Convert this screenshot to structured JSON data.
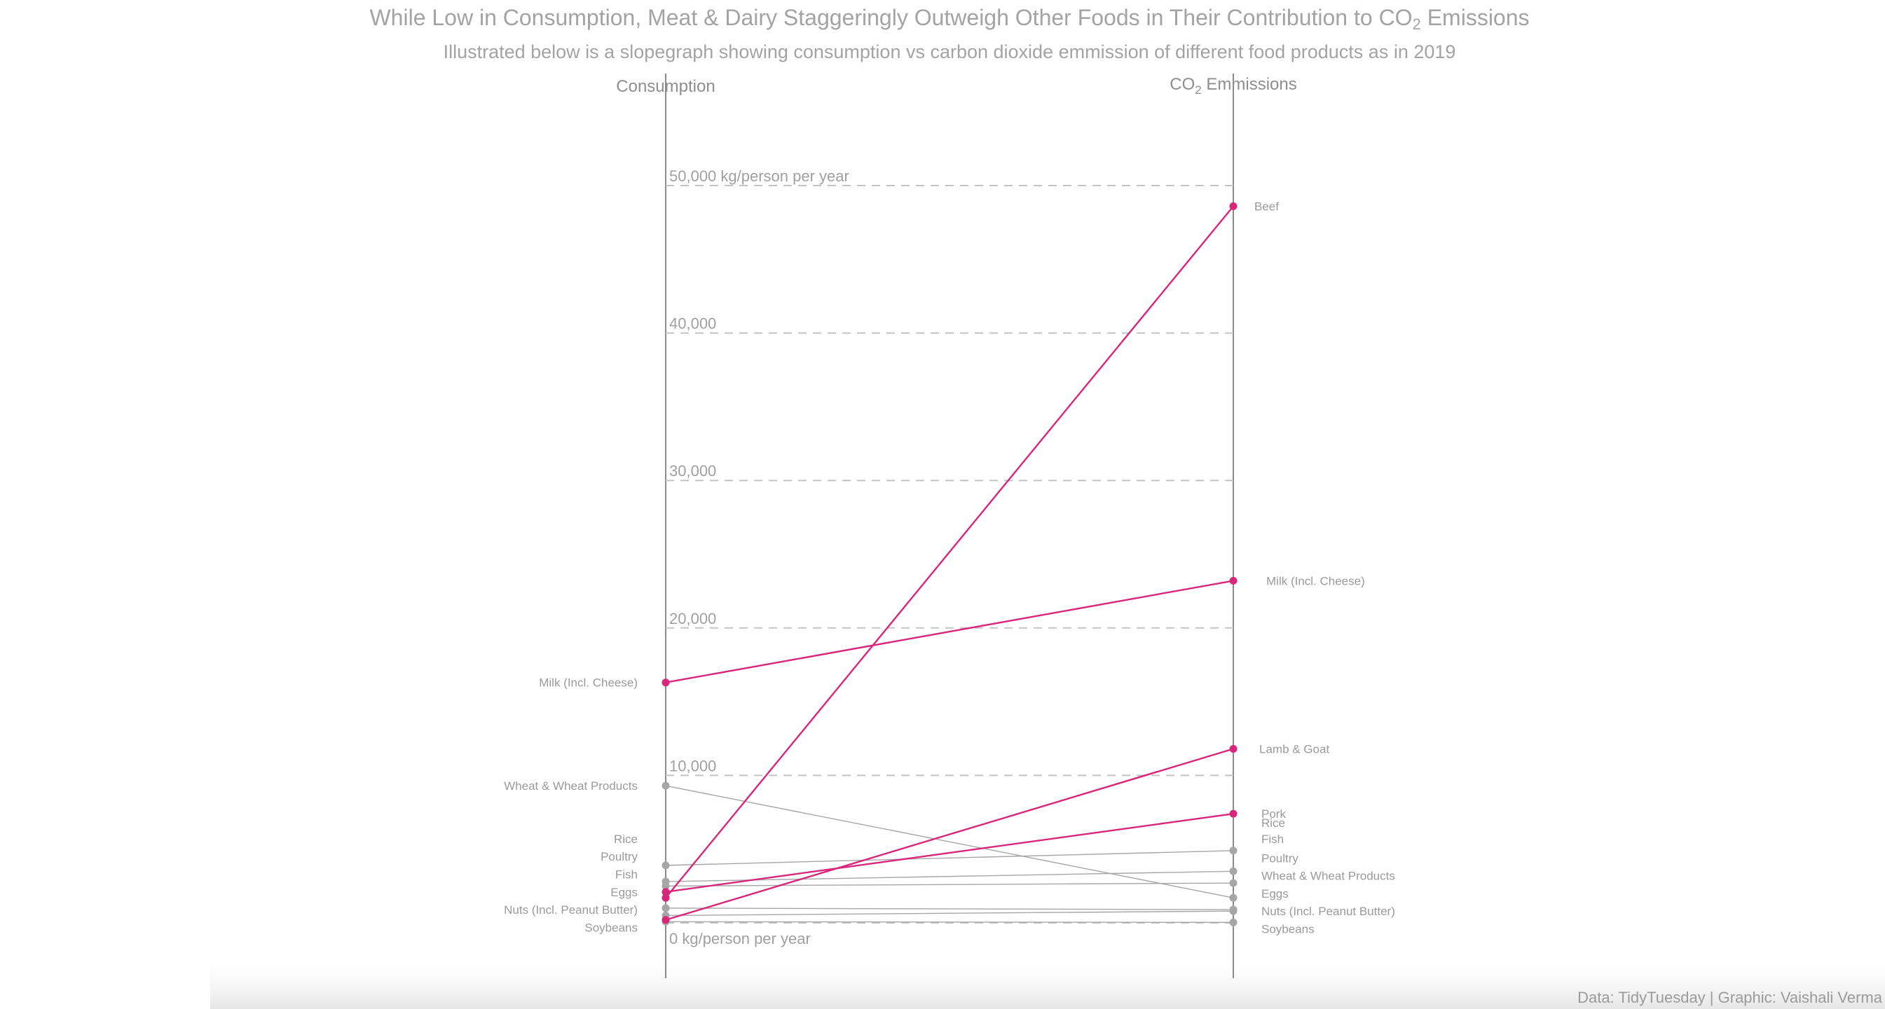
{
  "chart_data": {
    "type": "slopegraph",
    "title": {
      "text_before": "While Low in Consumption, Meat & Dairy Staggeringly Outweigh Other Foods in Their Contribution to CO",
      "subscript": "2",
      "text_after": " Emissions"
    },
    "subtitle": "Illustrated below is a slopegraph showing consumption vs carbon dioxide emmission of different food products as in 2019",
    "left_axis_label": "Consumption",
    "right_axis_label": {
      "text_before": "CO",
      "subscript": "2",
      "text_after": " Emmissions"
    },
    "ylim": [
      0,
      50000
    ],
    "grid_lines": [
      {
        "value": 50000,
        "label": "50,000 kg/person per year"
      },
      {
        "value": 40000,
        "label": "40,000"
      },
      {
        "value": 30000,
        "label": "30,000"
      },
      {
        "value": 20000,
        "label": "20,000"
      },
      {
        "value": 10000,
        "label": "10,000"
      },
      {
        "value": 0,
        "label": "0 kg/person per year"
      }
    ],
    "highlight_color": "#d9267a",
    "base_color": "#a6a6a6",
    "series": [
      {
        "name": "Beef",
        "consumption": 1700,
        "co2": 48600,
        "highlight": true
      },
      {
        "name": "Milk (Incl. Cheese)",
        "consumption": 16300,
        "co2": 23200,
        "highlight": true
      },
      {
        "name": "Lamb & Goat",
        "consumption": 200,
        "co2": 11800,
        "highlight": true
      },
      {
        "name": "Pork",
        "consumption": 2100,
        "co2": 7400,
        "highlight": true
      },
      {
        "name": "Wheat & Wheat Products",
        "consumption": 9300,
        "co2": 1700,
        "highlight": false
      },
      {
        "name": "Rice",
        "consumption": 3900,
        "co2": 4900,
        "highlight": false
      },
      {
        "name": "Poultry",
        "consumption": 2500,
        "co2": 2700,
        "highlight": false
      },
      {
        "name": "Fish",
        "consumption": 2800,
        "co2": 3500,
        "highlight": false
      },
      {
        "name": "Eggs",
        "consumption": 1000,
        "co2": 900,
        "highlight": false
      },
      {
        "name": "Nuts (Incl. Peanut Butter)",
        "consumption": 500,
        "co2": 800,
        "highlight": false
      },
      {
        "name": "Soybeans",
        "consumption": 80,
        "co2": 30,
        "highlight": false
      }
    ],
    "left_labels": [
      {
        "name": "Milk (Incl. Cheese)",
        "at": 16300
      },
      {
        "name": "Wheat & Wheat Products",
        "at": 9300
      },
      {
        "name": "Rice",
        "at": 5700
      },
      {
        "name": "Poultry",
        "at": 4500
      },
      {
        "name": "Fish",
        "at": 3300
      },
      {
        "name": "Eggs",
        "at": 2100
      },
      {
        "name": "Nuts (Incl. Peanut Butter)",
        "at": 900
      },
      {
        "name": "Soybeans",
        "at": -300
      }
    ],
    "right_labels": [
      {
        "name": "Beef",
        "at": 48600
      },
      {
        "name": "Milk (Incl. Cheese)",
        "at": 23200
      },
      {
        "name": "Lamb & Goat",
        "at": 11800
      },
      {
        "name": "Pork",
        "at": 7400
      },
      {
        "name": "Rice",
        "at": 6800
      },
      {
        "name": "Fish",
        "at": 5700
      },
      {
        "name": "Poultry",
        "at": 4400
      },
      {
        "name": "Wheat & Wheat Products",
        "at": 3200
      },
      {
        "name": "Eggs",
        "at": 2000
      },
      {
        "name": "Nuts (Incl. Peanut Butter)",
        "at": 800
      },
      {
        "name": "Soybeans",
        "at": -400
      }
    ]
  },
  "caption": "Data: TidyTuesday | Graphic: Vaishali Verma"
}
